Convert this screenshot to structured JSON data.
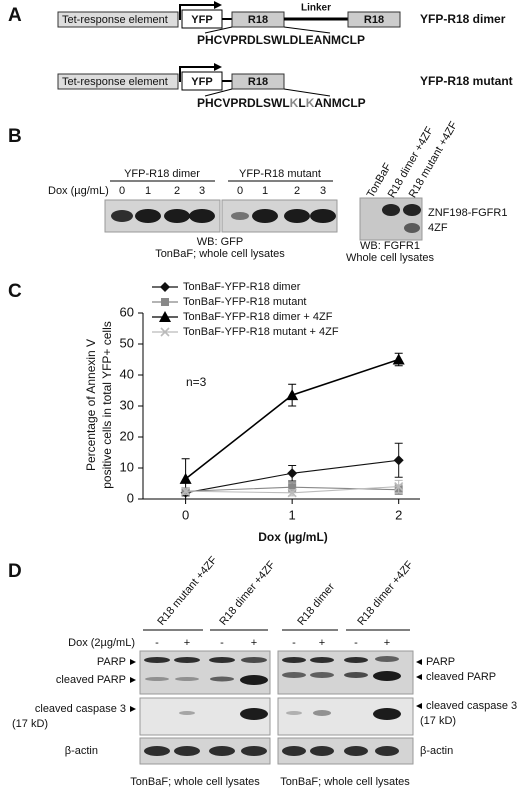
{
  "panel_a": {
    "label": "A",
    "constructs": [
      {
        "promoter": "Tet-response element",
        "tag": "YFP",
        "domains": [
          "R18",
          "R18"
        ],
        "linker": "Linker",
        "name": "YFP-R18 dimer",
        "sequence": [
          {
            "text": "PHCVPRDLSWLDLEANMCLP",
            "mutated": false
          }
        ]
      },
      {
        "promoter": "Tet-response element",
        "tag": "YFP",
        "domains": [
          "R18"
        ],
        "name": "YFP-R18 mutant",
        "sequence": [
          {
            "text": "PHCVPRDLSWL",
            "mutated": false
          },
          {
            "text": "K",
            "mutated": true
          },
          {
            "text": "L",
            "mutated": false
          },
          {
            "text": "K",
            "mutated": true
          },
          {
            "text": "ANMCLP",
            "mutated": false
          }
        ]
      }
    ]
  },
  "panel_b": {
    "label": "B",
    "groups": [
      "YFP-R18 dimer",
      "YFP-R18 mutant"
    ],
    "dox_label": "Dox (µg/mL)",
    "doses": [
      0,
      1,
      2,
      3
    ],
    "wb_left": [
      "WB: GFP",
      "TonBaF; whole cell lysates"
    ],
    "lanes_right": [
      "TonBaF",
      "R18 dimer +4ZF",
      "R18 mutant +4ZF"
    ],
    "bands_right": [
      "ZNF198-FGFR1",
      "4ZF"
    ],
    "wb_right": [
      "WB: FGFR1",
      "Whole cell lysates"
    ]
  },
  "chart_data": {
    "type": "line",
    "panel": "C",
    "ylabel": [
      "Percentage of Annexin V",
      "positive cells in total YFP+ cells"
    ],
    "xlabel": "Dox (µg/mL)",
    "annotation": "n=3",
    "x": [
      0,
      1,
      2
    ],
    "xlim": [
      -0.4,
      2.2
    ],
    "xticks": [
      0,
      1,
      2
    ],
    "ylim": [
      0,
      60
    ],
    "yticks": [
      0,
      10,
      20,
      30,
      40,
      50,
      60
    ],
    "series": [
      {
        "name": "TonBaF-YFP-R18 dimer",
        "color": "#111111",
        "marker": "diamond",
        "values": [
          2,
          8.3,
          12.5
        ],
        "errors": [
          1,
          2.5,
          5.5
        ]
      },
      {
        "name": "TonBaF-YFP-R18 mutant",
        "color": "#888888",
        "marker": "square",
        "values": [
          2.5,
          3.8,
          3
        ],
        "errors": [
          1,
          1.5,
          1.5
        ]
      },
      {
        "name": "TonBaF-YFP-R18 dimer + 4ZF",
        "color": "#000000",
        "marker": "triangle",
        "values": [
          6.5,
          33.5,
          45
        ],
        "errors": [
          6.5,
          3.5,
          2
        ]
      },
      {
        "name": "TonBaF-YFP-R18 mutant + 4ZF",
        "color": "#bbbbbb",
        "marker": "x",
        "values": [
          2.5,
          2,
          4
        ],
        "errors": [
          1,
          1,
          2
        ]
      }
    ]
  },
  "panel_d": {
    "label": "D",
    "dox_label": "Dox (2µg/mL)",
    "signs": [
      "-",
      "+"
    ],
    "blots": [
      {
        "lanes": [
          "R18 mutant +4ZF",
          "R18 dimer +4ZF"
        ],
        "bands": [
          "PARP",
          "cleaved PARP",
          "cleaved caspase 3",
          "(17 kD)",
          "β-actin"
        ],
        "caption": "TonBaF; whole cell lysates"
      },
      {
        "lanes": [
          "R18 dimer",
          "R18 dimer +4ZF"
        ],
        "bands": [
          "PARP",
          "cleaved PARP",
          "cleaved caspase 3",
          "(17 kD)",
          "β-actin"
        ],
        "caption": "TonBaF; whole cell lysates"
      }
    ]
  }
}
